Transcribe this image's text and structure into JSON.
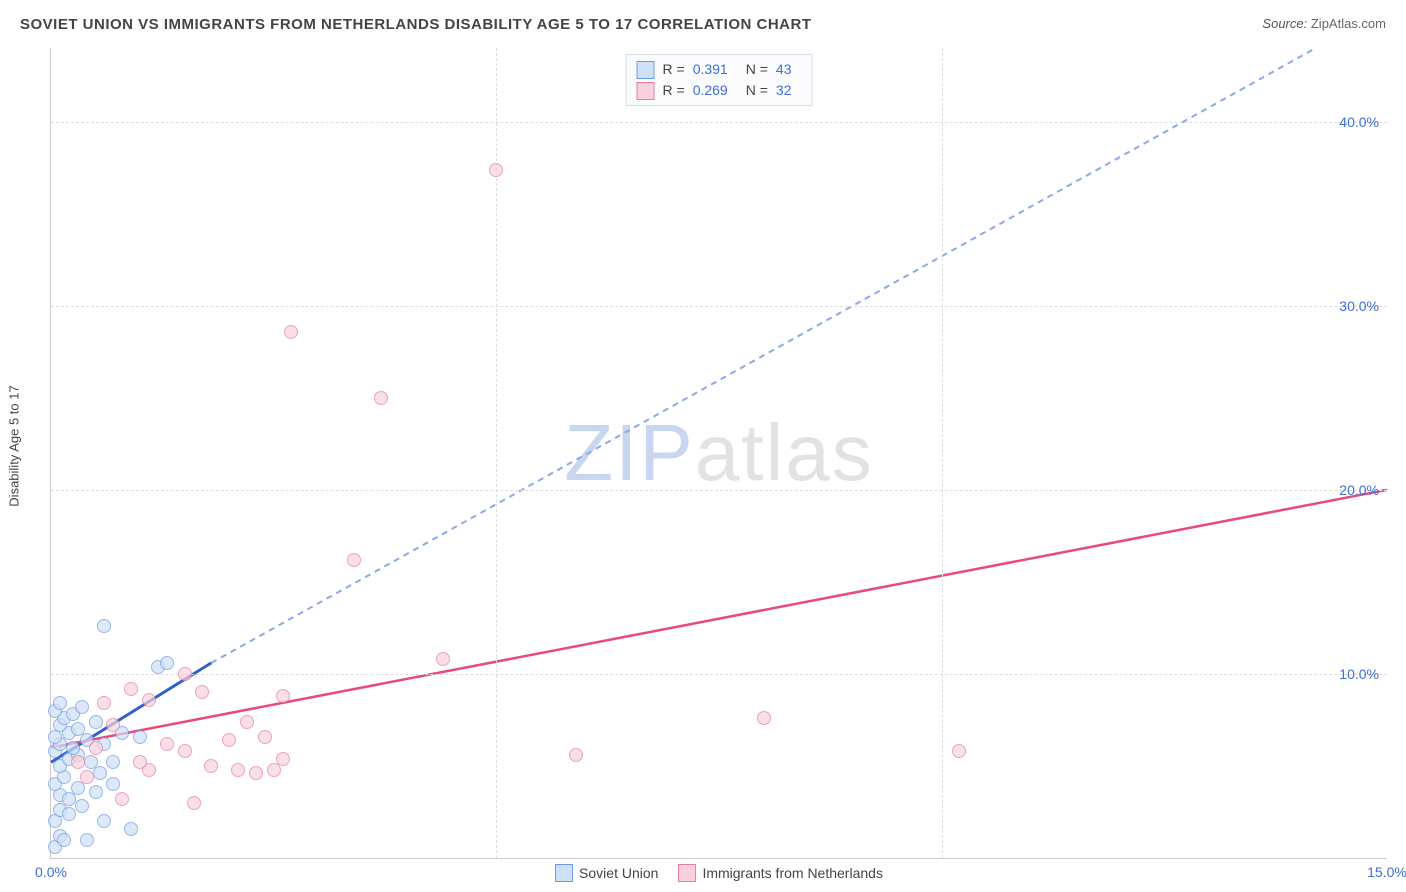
{
  "title": "SOVIET UNION VS IMMIGRANTS FROM NETHERLANDS DISABILITY AGE 5 TO 17 CORRELATION CHART",
  "source_label": "Source:",
  "source_value": "ZipAtlas.com",
  "ylabel": "Disability Age 5 to 17",
  "watermark": {
    "prefix": "ZIP",
    "suffix": "atlas"
  },
  "chart": {
    "type": "scatter",
    "xlim": [
      0,
      15
    ],
    "ylim": [
      0,
      44
    ],
    "background_color": "#ffffff",
    "grid_color": "#dddddd",
    "axis_color": "#cccccc",
    "tick_color": "#3b6fd6",
    "tick_fontsize": 14,
    "title_fontsize": 15,
    "y_gridlines": [
      10,
      20,
      30,
      40
    ],
    "x_gridlines": [
      5,
      10
    ],
    "y_ticks": [
      {
        "v": 10,
        "label": "10.0%"
      },
      {
        "v": 20,
        "label": "20.0%"
      },
      {
        "v": 30,
        "label": "30.0%"
      },
      {
        "v": 40,
        "label": "40.0%"
      }
    ],
    "x_ticks": [
      {
        "v": 0,
        "label": "0.0%"
      },
      {
        "v": 15,
        "label": "15.0%"
      }
    ],
    "marker_radius": 7,
    "marker_border_width": 1,
    "series": [
      {
        "name": "Soviet Union",
        "fill": "#cfe0f7",
        "stroke": "#6a9be8",
        "fill_opacity": 0.7,
        "R": "0.391",
        "N": "43",
        "trend": {
          "style": "solid_then_dashed",
          "color_solid": "#2f62c9",
          "color_dash": "#8aa9e6",
          "width": 2,
          "dash": "6,5",
          "x1": 0,
          "y1": 5.2,
          "xb": 1.8,
          "yb": 10.6,
          "x2": 14.2,
          "y2": 44.0
        },
        "points": [
          {
            "x": 0.05,
            "y": 0.6
          },
          {
            "x": 0.1,
            "y": 1.2
          },
          {
            "x": 0.15,
            "y": 1.0
          },
          {
            "x": 0.05,
            "y": 2.0
          },
          {
            "x": 0.1,
            "y": 2.6
          },
          {
            "x": 0.2,
            "y": 2.4
          },
          {
            "x": 0.1,
            "y": 3.4
          },
          {
            "x": 0.2,
            "y": 3.2
          },
          {
            "x": 0.05,
            "y": 4.0
          },
          {
            "x": 0.15,
            "y": 4.4
          },
          {
            "x": 0.3,
            "y": 3.8
          },
          {
            "x": 0.1,
            "y": 5.0
          },
          {
            "x": 0.2,
            "y": 5.4
          },
          {
            "x": 0.05,
            "y": 5.8
          },
          {
            "x": 0.3,
            "y": 5.6
          },
          {
            "x": 0.1,
            "y": 6.2
          },
          {
            "x": 0.25,
            "y": 6.0
          },
          {
            "x": 0.05,
            "y": 6.6
          },
          {
            "x": 0.2,
            "y": 6.8
          },
          {
            "x": 0.1,
            "y": 7.2
          },
          {
            "x": 0.3,
            "y": 7.0
          },
          {
            "x": 0.15,
            "y": 7.6
          },
          {
            "x": 0.05,
            "y": 8.0
          },
          {
            "x": 0.25,
            "y": 7.8
          },
          {
            "x": 0.4,
            "y": 6.4
          },
          {
            "x": 0.1,
            "y": 8.4
          },
          {
            "x": 0.35,
            "y": 8.2
          },
          {
            "x": 0.5,
            "y": 7.4
          },
          {
            "x": 0.6,
            "y": 6.2
          },
          {
            "x": 0.7,
            "y": 5.2
          },
          {
            "x": 0.8,
            "y": 6.8
          },
          {
            "x": 0.5,
            "y": 3.6
          },
          {
            "x": 0.6,
            "y": 2.0
          },
          {
            "x": 0.9,
            "y": 1.6
          },
          {
            "x": 0.4,
            "y": 1.0
          },
          {
            "x": 1.0,
            "y": 6.6
          },
          {
            "x": 1.2,
            "y": 10.4
          },
          {
            "x": 1.3,
            "y": 10.6
          },
          {
            "x": 0.6,
            "y": 12.6
          },
          {
            "x": 0.55,
            "y": 4.6
          },
          {
            "x": 0.45,
            "y": 5.2
          },
          {
            "x": 0.7,
            "y": 4.0
          },
          {
            "x": 0.35,
            "y": 2.8
          }
        ]
      },
      {
        "name": "Immigants from Netherlands",
        "legend_label": "Immigrants from Netherlands",
        "fill": "#f7d2dd",
        "stroke": "#e87ca0",
        "fill_opacity": 0.7,
        "R": "0.269",
        "N": "32",
        "trend": {
          "style": "solid",
          "color_solid": "#e84a7a",
          "width": 2.5,
          "x1": 0,
          "y1": 6.0,
          "x2": 15,
          "y2": 20.0
        },
        "points": [
          {
            "x": 0.3,
            "y": 5.2
          },
          {
            "x": 0.5,
            "y": 6.0
          },
          {
            "x": 0.7,
            "y": 7.2
          },
          {
            "x": 0.8,
            "y": 3.2
          },
          {
            "x": 0.9,
            "y": 9.2
          },
          {
            "x": 1.1,
            "y": 8.6
          },
          {
            "x": 1.1,
            "y": 4.8
          },
          {
            "x": 1.3,
            "y": 6.2
          },
          {
            "x": 1.5,
            "y": 10.0
          },
          {
            "x": 1.5,
            "y": 5.8
          },
          {
            "x": 1.6,
            "y": 3.0
          },
          {
            "x": 1.7,
            "y": 9.0
          },
          {
            "x": 1.8,
            "y": 5.0
          },
          {
            "x": 2.0,
            "y": 6.4
          },
          {
            "x": 2.1,
            "y": 4.8
          },
          {
            "x": 2.2,
            "y": 7.4
          },
          {
            "x": 2.3,
            "y": 4.6
          },
          {
            "x": 2.4,
            "y": 6.6
          },
          {
            "x": 2.5,
            "y": 4.8
          },
          {
            "x": 2.6,
            "y": 8.8
          },
          {
            "x": 2.6,
            "y": 5.4
          },
          {
            "x": 2.7,
            "y": 28.6
          },
          {
            "x": 3.4,
            "y": 16.2
          },
          {
            "x": 3.7,
            "y": 25.0
          },
          {
            "x": 4.4,
            "y": 10.8
          },
          {
            "x": 5.0,
            "y": 37.4
          },
          {
            "x": 5.9,
            "y": 5.6
          },
          {
            "x": 8.0,
            "y": 7.6
          },
          {
            "x": 10.2,
            "y": 5.8
          },
          {
            "x": 0.4,
            "y": 4.4
          },
          {
            "x": 0.6,
            "y": 8.4
          },
          {
            "x": 1.0,
            "y": 5.2
          }
        ]
      }
    ]
  },
  "legend_top_rows": [
    {
      "swatch_fill": "#cfe0f7",
      "swatch_stroke": "#6a9be8",
      "R": "0.391",
      "N": "43"
    },
    {
      "swatch_fill": "#f7d2dd",
      "swatch_stroke": "#e87ca0",
      "R": "0.269",
      "N": "32"
    }
  ],
  "legend_bottom": [
    {
      "swatch_fill": "#cfe0f7",
      "swatch_stroke": "#6a9be8",
      "label": "Soviet Union"
    },
    {
      "swatch_fill": "#f7d2dd",
      "swatch_stroke": "#e87ca0",
      "label": "Immigrants from Netherlands"
    }
  ]
}
